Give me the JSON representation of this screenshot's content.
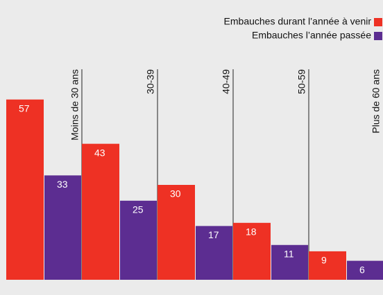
{
  "chart_data": {
    "type": "bar",
    "categories": [
      "Moins de 30 ans",
      "30-39",
      "40-49",
      "50-59",
      "Plus de 60 ans"
    ],
    "series": [
      {
        "name": "Embauches durant l’année à venir",
        "color": "#ee3124",
        "values": [
          57,
          43,
          30,
          18,
          9
        ]
      },
      {
        "name": "Embauches l’année passée",
        "color": "#5c2d91",
        "values": [
          33,
          25,
          17,
          11,
          6
        ]
      }
    ],
    "ylim": [
      0,
      60
    ],
    "legend": "top-right"
  }
}
